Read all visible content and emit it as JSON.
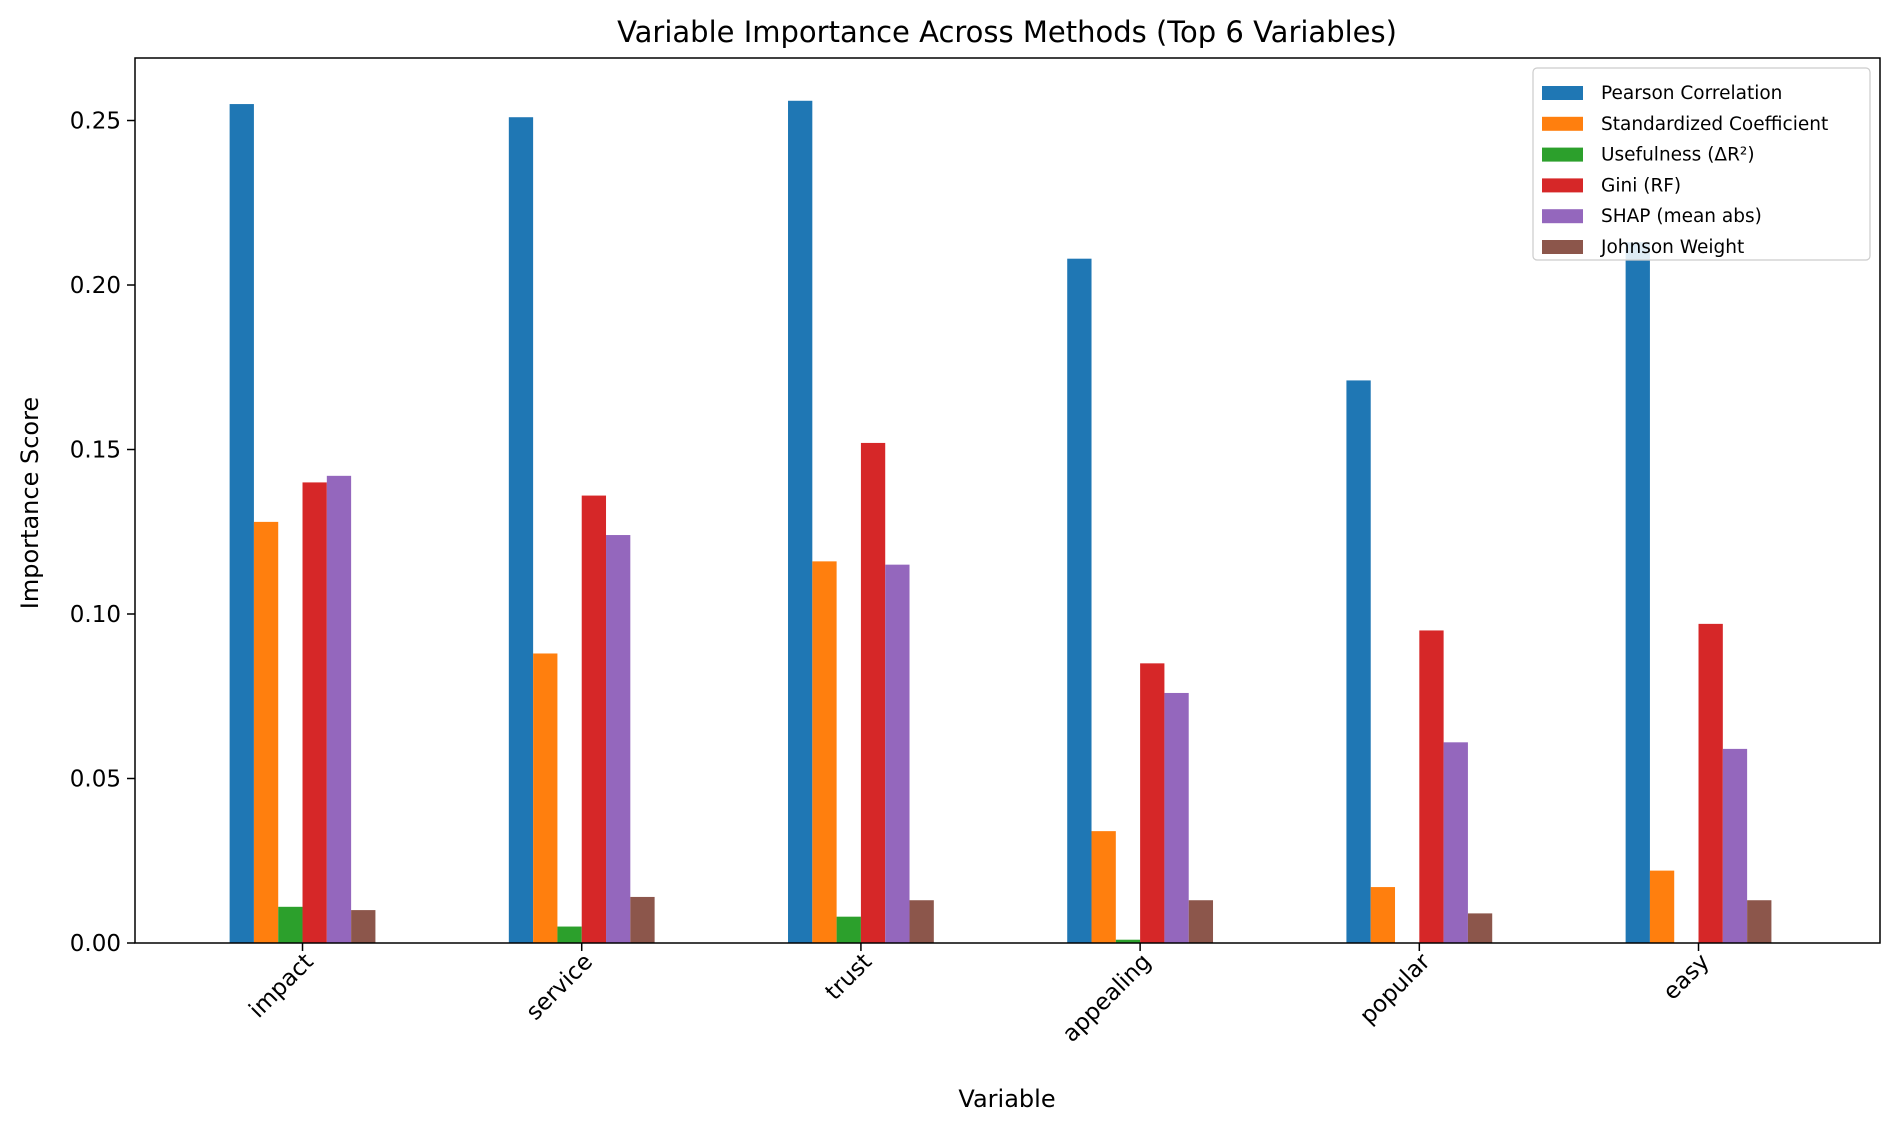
{
  "chart_data": {
    "type": "bar",
    "title": "Variable Importance Across Methods (Top 6 Variables)",
    "xlabel": "Variable",
    "ylabel": "Importance Score",
    "categories": [
      "impact",
      "service",
      "trust",
      "appealing",
      "popular",
      "easy"
    ],
    "series": [
      {
        "name": "Pearson Correlation",
        "color": "#1f77b4",
        "values": [
          0.255,
          0.251,
          0.256,
          0.208,
          0.171,
          0.213
        ]
      },
      {
        "name": "Standardized Coefficient",
        "color": "#ff7f0e",
        "values": [
          0.128,
          0.088,
          0.116,
          0.034,
          0.017,
          0.022
        ]
      },
      {
        "name": "Usefulness (ΔR²)",
        "color": "#2ca02c",
        "values": [
          0.011,
          0.005,
          0.008,
          0.001,
          0.0,
          0.0
        ]
      },
      {
        "name": "Gini (RF)",
        "color": "#d62728",
        "values": [
          0.14,
          0.136,
          0.152,
          0.085,
          0.095,
          0.097
        ]
      },
      {
        "name": "SHAP (mean abs)",
        "color": "#9467bd",
        "values": [
          0.142,
          0.124,
          0.115,
          0.076,
          0.061,
          0.059
        ]
      },
      {
        "name": "Johnson Weight",
        "color": "#8c564b",
        "values": [
          0.01,
          0.014,
          0.013,
          0.013,
          0.009,
          0.013
        ]
      }
    ],
    "yticks": [
      "0.00",
      "0.05",
      "0.10",
      "0.15",
      "0.20",
      "0.25"
    ],
    "ylim": [
      0,
      0.269
    ],
    "grid": false,
    "legend_position": "top-right"
  }
}
